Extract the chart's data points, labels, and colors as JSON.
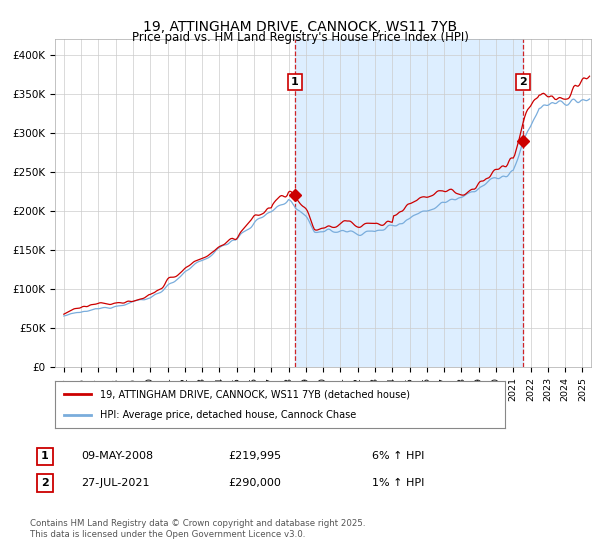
{
  "title": "19, ATTINGHAM DRIVE, CANNOCK, WS11 7YB",
  "subtitle": "Price paid vs. HM Land Registry's House Price Index (HPI)",
  "legend_line1": "19, ATTINGHAM DRIVE, CANNOCK, WS11 7YB (detached house)",
  "legend_line2": "HPI: Average price, detached house, Cannock Chase",
  "sale1_label": "1",
  "sale1_date": "09-MAY-2008",
  "sale1_price": "£219,995",
  "sale1_hpi": "6% ↑ HPI",
  "sale1_year": 2008.36,
  "sale1_value": 219995,
  "sale2_label": "2",
  "sale2_date": "27-JUL-2021",
  "sale2_price": "£290,000",
  "sale2_hpi": "1% ↑ HPI",
  "sale2_year": 2021.57,
  "sale2_value": 290000,
  "footnote": "Contains HM Land Registry data © Crown copyright and database right 2025.\nThis data is licensed under the Open Government Licence v3.0.",
  "price_line_color": "#cc0000",
  "hpi_line_color": "#7aaddc",
  "marker_color": "#cc0000",
  "vline_color": "#cc0000",
  "shade_color": "#ddeeff",
  "bg_color": "#ffffff",
  "grid_color": "#cccccc",
  "ylim": [
    0,
    420000
  ],
  "xlim_start": 1994.5,
  "xlim_end": 2025.5
}
